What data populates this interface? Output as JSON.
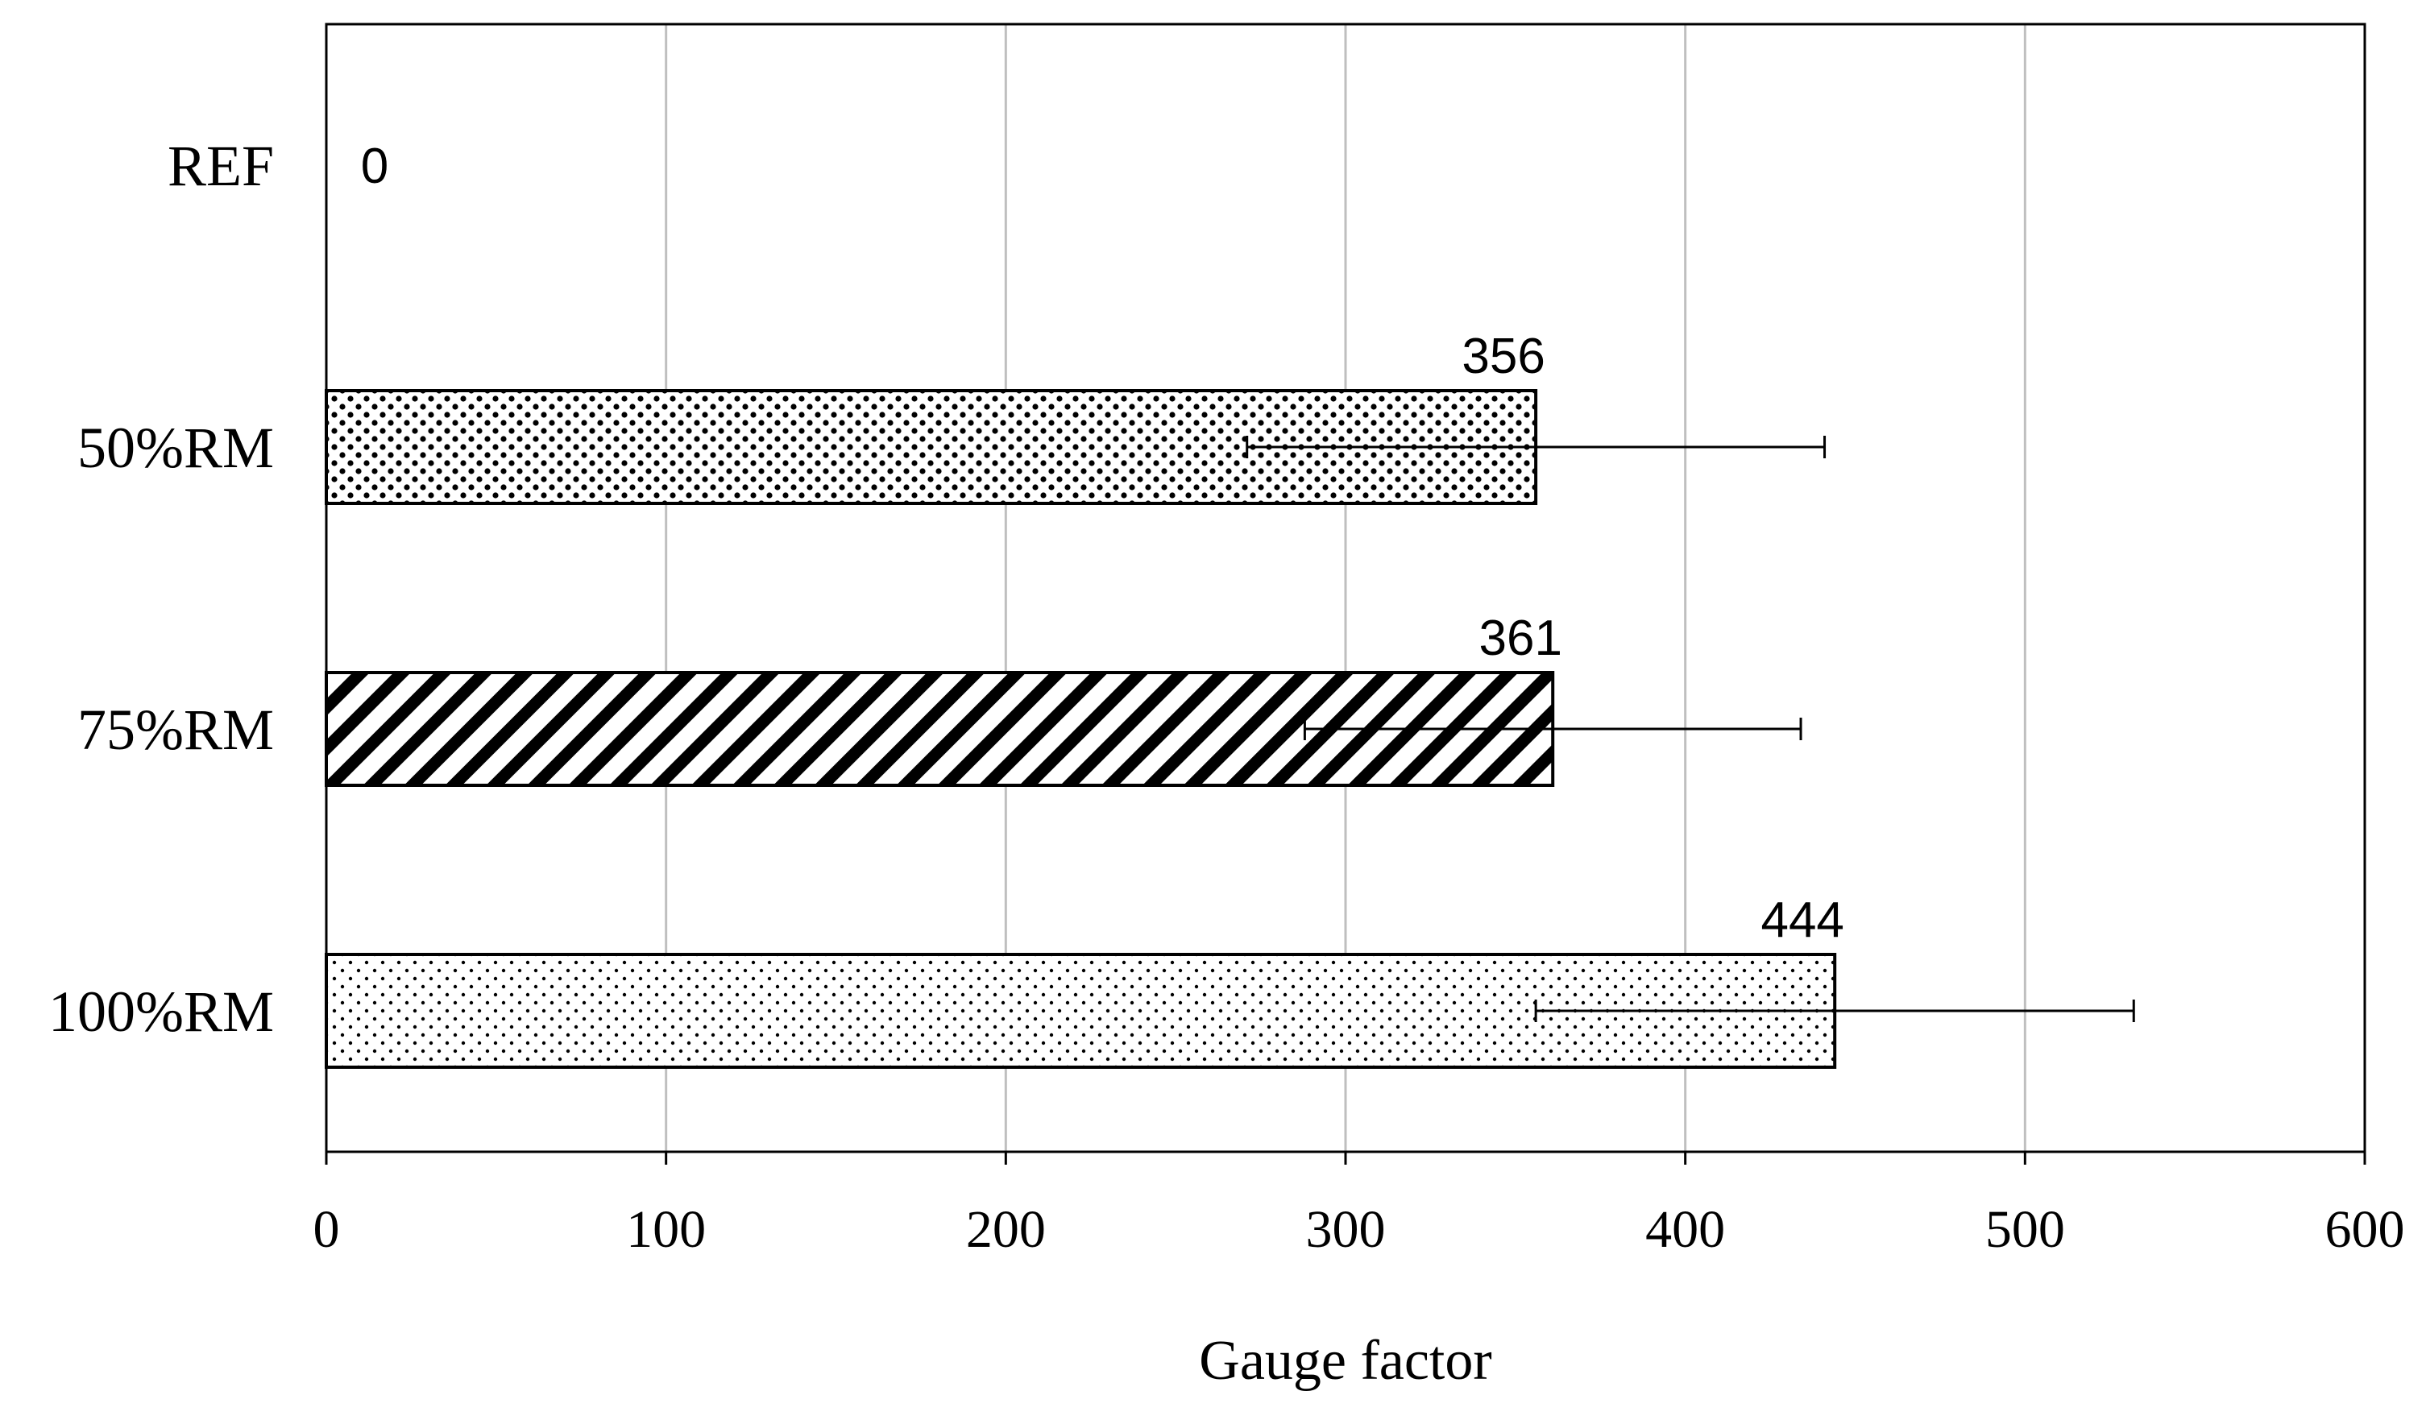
{
  "chart_data": {
    "type": "bar",
    "orientation": "horizontal",
    "categories": [
      "REF",
      "50%RM",
      "75%RM",
      "100%RM"
    ],
    "values": [
      0,
      356,
      361,
      444
    ],
    "errors": [
      null,
      85,
      73,
      88
    ],
    "data_labels": [
      "0",
      "356",
      "361",
      "444"
    ],
    "patterns": [
      "none",
      "dense-dots",
      "diagonal-stripes",
      "sparse-dots"
    ],
    "xlabel": "Gauge factor",
    "ylabel": "",
    "title": "",
    "xlim": [
      0,
      600
    ],
    "xticks": [
      0,
      100,
      200,
      300,
      400,
      500,
      600
    ],
    "xtick_labels": [
      "0",
      "100",
      "200",
      "300",
      "400",
      "500",
      "600"
    ],
    "grid": "vertical",
    "legend": "none",
    "colors": {
      "bar_outline": "#000000",
      "grid": "#bfbfbf",
      "pattern_ink": "#000000",
      "background": "#ffffff"
    }
  }
}
